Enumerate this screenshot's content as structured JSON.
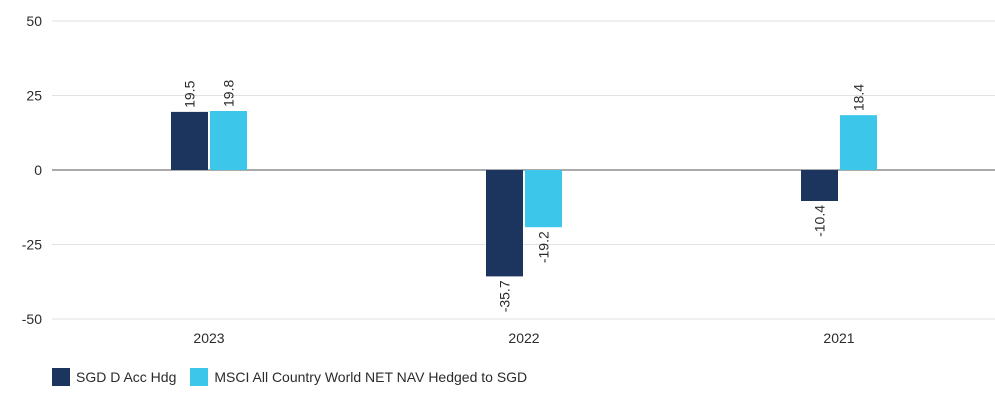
{
  "chart_data": {
    "type": "bar",
    "categories": [
      "2023",
      "2022",
      "2021"
    ],
    "series": [
      {
        "name": "SGD D Acc Hdg",
        "color": "#1b355e",
        "values": [
          19.5,
          -35.7,
          -10.4
        ]
      },
      {
        "name": "MSCI All Country World NET NAV Hedged to SGD",
        "color": "#3cc7ea",
        "values": [
          19.8,
          -19.2,
          18.4
        ]
      }
    ],
    "yticks": [
      "50",
      "25",
      "0",
      "-25",
      "-50"
    ],
    "ylim": [
      -50,
      50
    ],
    "grid": true,
    "legend_position": "bottom-left"
  }
}
